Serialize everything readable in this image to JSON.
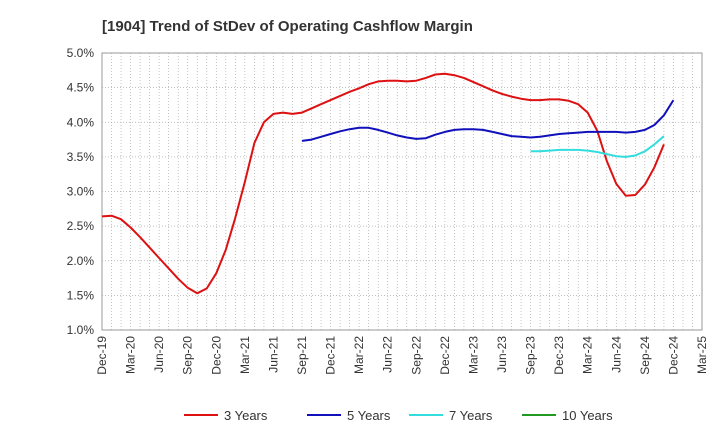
{
  "chart_data": {
    "type": "line",
    "title": "[1904]  Trend of StDev of Operating Cashflow Margin",
    "xlabel": "",
    "ylabel": "",
    "x_ticks": [
      "Dec-19",
      "Mar-20",
      "Jun-20",
      "Sep-20",
      "Dec-20",
      "Mar-21",
      "Jun-21",
      "Sep-21",
      "Dec-21",
      "Mar-22",
      "Jun-22",
      "Sep-22",
      "Dec-22",
      "Mar-23",
      "Jun-23",
      "Sep-23",
      "Dec-23",
      "Mar-24",
      "Jun-24",
      "Sep-24",
      "Dec-24",
      "Mar-25"
    ],
    "y_ticks": [
      "1.0%",
      "1.5%",
      "2.0%",
      "2.5%",
      "3.0%",
      "3.5%",
      "4.0%",
      "4.5%",
      "5.0%"
    ],
    "ylim": [
      1.0,
      5.0
    ],
    "grid": true,
    "legend_position": "bottom",
    "series": [
      {
        "name": "3 Years",
        "color": "#dd1111",
        "start": "Dec-19",
        "values": [
          2.64,
          2.65,
          2.6,
          2.48,
          2.34,
          2.19,
          2.04,
          1.89,
          1.74,
          1.61,
          1.53,
          1.6,
          1.82,
          2.16,
          2.62,
          3.14,
          3.7,
          4.0,
          4.12,
          4.14,
          4.12,
          4.14,
          4.2,
          4.26,
          4.32,
          4.38,
          4.44,
          4.49,
          4.55,
          4.59,
          4.6,
          4.6,
          4.59,
          4.6,
          4.64,
          4.69,
          4.7,
          4.68,
          4.64,
          4.58,
          4.52,
          4.46,
          4.41,
          4.37,
          4.34,
          4.32,
          4.32,
          4.33,
          4.33,
          4.31,
          4.26,
          4.14,
          3.88,
          3.44,
          3.11,
          2.94,
          2.95,
          3.1,
          3.35,
          3.68
        ]
      },
      {
        "name": "5 Years",
        "color": "#1111bb",
        "start": "Sep-21",
        "values": [
          3.73,
          3.75,
          3.79,
          3.83,
          3.87,
          3.9,
          3.92,
          3.92,
          3.89,
          3.85,
          3.81,
          3.78,
          3.76,
          3.77,
          3.82,
          3.86,
          3.89,
          3.9,
          3.9,
          3.89,
          3.86,
          3.83,
          3.8,
          3.79,
          3.78,
          3.79,
          3.81,
          3.83,
          3.84,
          3.85,
          3.86,
          3.86,
          3.86,
          3.86,
          3.85,
          3.86,
          3.89,
          3.96,
          4.1,
          4.32
        ]
      },
      {
        "name": "7 Years",
        "color": "#33dddd",
        "start": "Sep-23",
        "values": [
          3.58,
          3.58,
          3.59,
          3.6,
          3.6,
          3.6,
          3.59,
          3.57,
          3.54,
          3.51,
          3.5,
          3.52,
          3.58,
          3.68,
          3.8
        ]
      },
      {
        "name": "10 Years",
        "color": "#229922",
        "start": "Sep-23",
        "values": []
      }
    ]
  }
}
